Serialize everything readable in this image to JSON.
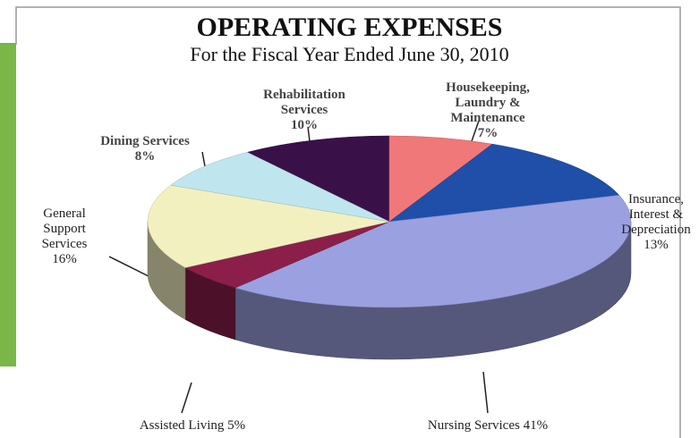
{
  "chart_data": {
    "type": "pie",
    "title": "OPERATING EXPENSES",
    "subtitle": "For the Fiscal Year Ended June 30, 2010",
    "categories": [
      "Rehabilitation Services",
      "Housekeeping, Laundry & Maintenance",
      "Insurance, Interest & Depreciation",
      "Nursing Services",
      "Assisted Living",
      "General Support Services",
      "Dining Services"
    ],
    "values": [
      10,
      7,
      13,
      41,
      5,
      16,
      8
    ],
    "value_labels": [
      "10%",
      "7%",
      "13%",
      "41%",
      "5%",
      "16%",
      "8%"
    ],
    "colors": [
      "#3a1048",
      "#f07878",
      "#1f4fa8",
      "#9aa0e0",
      "#8b1f4a",
      "#f3f0c0",
      "#bfe6ee"
    ]
  }
}
